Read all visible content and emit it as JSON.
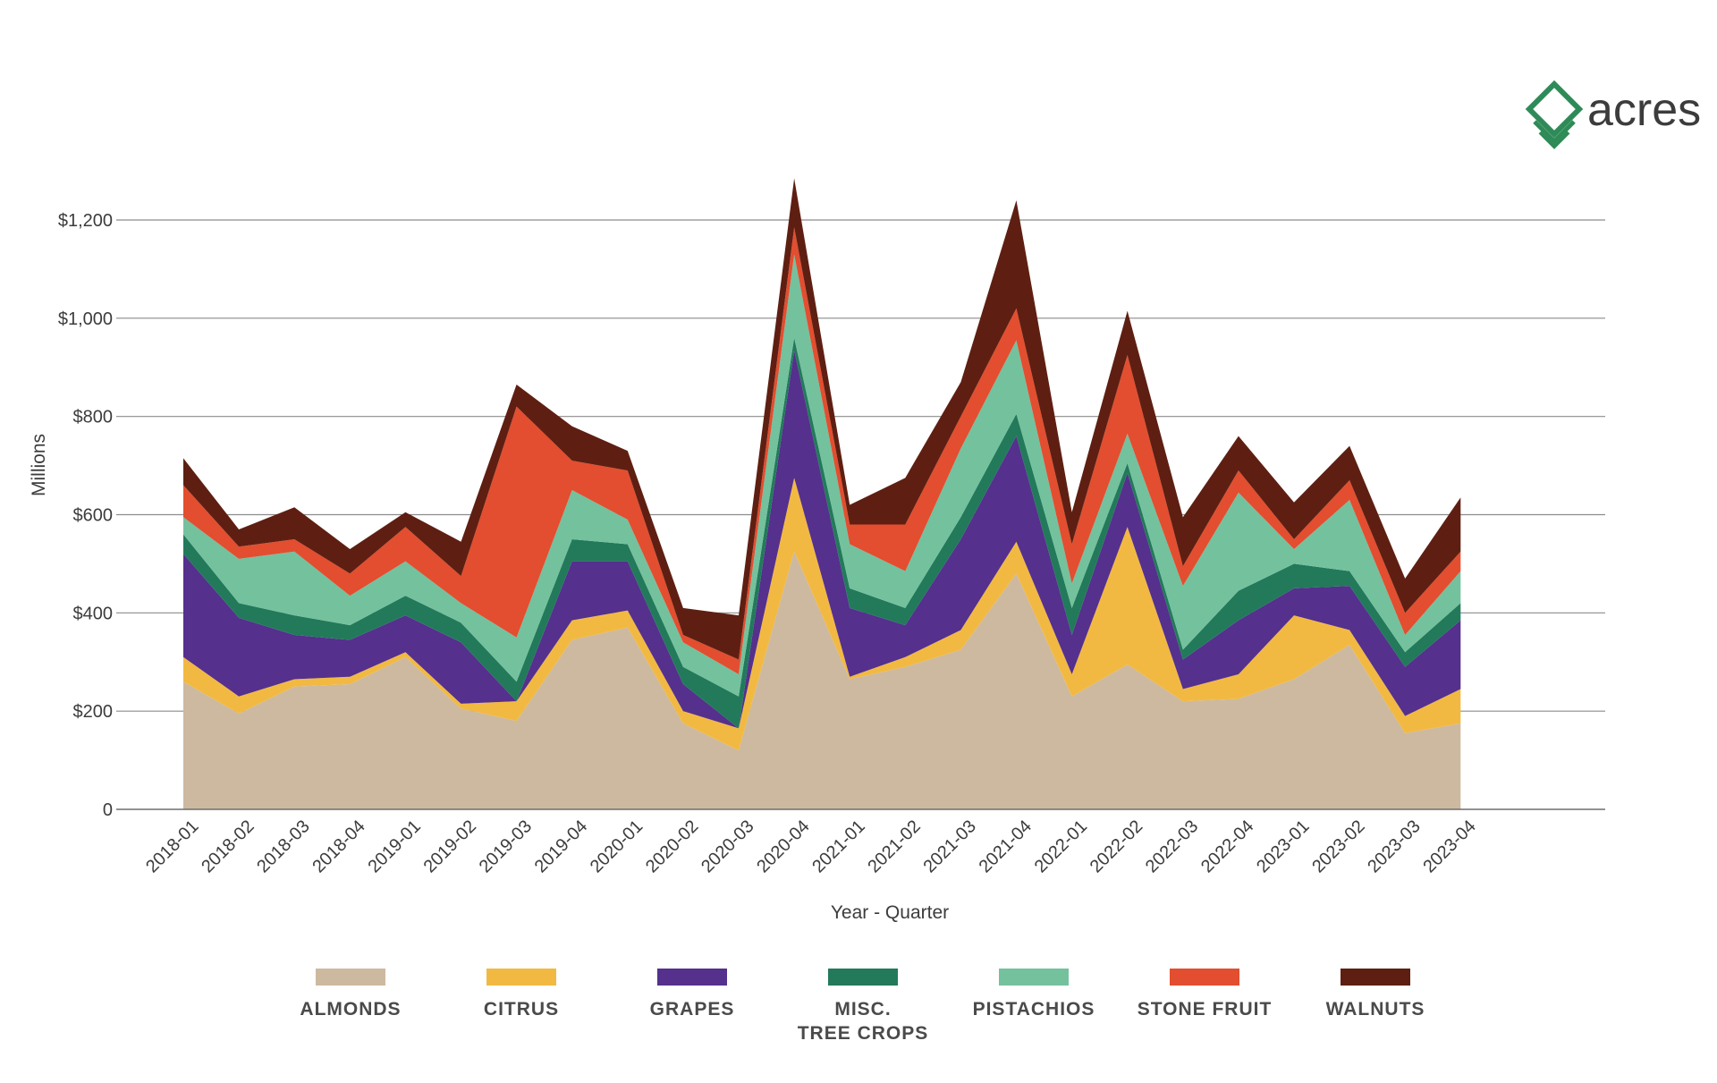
{
  "logo": {
    "text": "acres",
    "color": "#2e8b57"
  },
  "chart_data": {
    "type": "area",
    "stacked": true,
    "title": "",
    "xlabel": "Year - Quarter",
    "ylabel": "Millions",
    "ylim": [
      0,
      1300
    ],
    "yticks": [
      0,
      200,
      400,
      600,
      800,
      1000,
      1200
    ],
    "ytick_labels": [
      "0",
      "$200",
      "$400",
      "$600",
      "$800",
      "$1,000",
      "$1,200"
    ],
    "grid": true,
    "legend": "bottom",
    "categories": [
      "2018-01",
      "2018-02",
      "2018-03",
      "2018-04",
      "2019-01",
      "2019-02",
      "2019-03",
      "2019-04",
      "2020-01",
      "2020-02",
      "2020-03",
      "2020-04",
      "2021-01",
      "2021-02",
      "2021-03",
      "2021-04",
      "2022-01",
      "2022-02",
      "2022-03",
      "2022-04",
      "2023-01",
      "2023-02",
      "2023-03",
      "2023-04"
    ],
    "series": [
      {
        "name": "ALMONDS",
        "color": "#cdb9a0",
        "values": [
          260,
          195,
          250,
          255,
          310,
          205,
          180,
          345,
          370,
          175,
          120,
          525,
          265,
          290,
          325,
          480,
          230,
          295,
          220,
          225,
          265,
          335,
          155,
          175
        ]
      },
      {
        "name": "CITRUS",
        "color": "#f2b942",
        "values": [
          50,
          35,
          15,
          15,
          10,
          10,
          40,
          40,
          35,
          25,
          45,
          150,
          5,
          20,
          40,
          65,
          45,
          280,
          25,
          50,
          130,
          30,
          35,
          70
        ]
      },
      {
        "name": "GRAPES",
        "color": "#55308d",
        "values": [
          210,
          160,
          90,
          75,
          75,
          125,
          0,
          120,
          100,
          55,
          0,
          260,
          140,
          65,
          185,
          215,
          80,
          110,
          60,
          110,
          55,
          90,
          100,
          140
        ]
      },
      {
        "name": "MISC.\nTREE CROPS",
        "color": "#227a5a",
        "values": [
          40,
          30,
          40,
          30,
          40,
          40,
          40,
          45,
          35,
          35,
          65,
          25,
          40,
          35,
          45,
          45,
          55,
          20,
          20,
          60,
          50,
          30,
          30,
          35
        ]
      },
      {
        "name": "PISTACHIOS",
        "color": "#74c19e",
        "values": [
          35,
          90,
          130,
          60,
          70,
          40,
          90,
          100,
          50,
          50,
          45,
          170,
          90,
          75,
          140,
          150,
          50,
          60,
          130,
          200,
          30,
          145,
          35,
          65
        ]
      },
      {
        "name": "STONE FRUIT",
        "color": "#e24e2f",
        "values": [
          65,
          25,
          25,
          45,
          70,
          55,
          470,
          60,
          100,
          15,
          30,
          55,
          40,
          95,
          65,
          65,
          80,
          160,
          40,
          45,
          20,
          40,
          45,
          40
        ]
      },
      {
        "name": "WALNUTS",
        "color": "#5e1f12",
        "values": [
          55,
          35,
          65,
          50,
          30,
          70,
          45,
          70,
          40,
          55,
          90,
          100,
          40,
          95,
          70,
          220,
          65,
          90,
          100,
          70,
          75,
          70,
          70,
          110
        ]
      }
    ]
  }
}
